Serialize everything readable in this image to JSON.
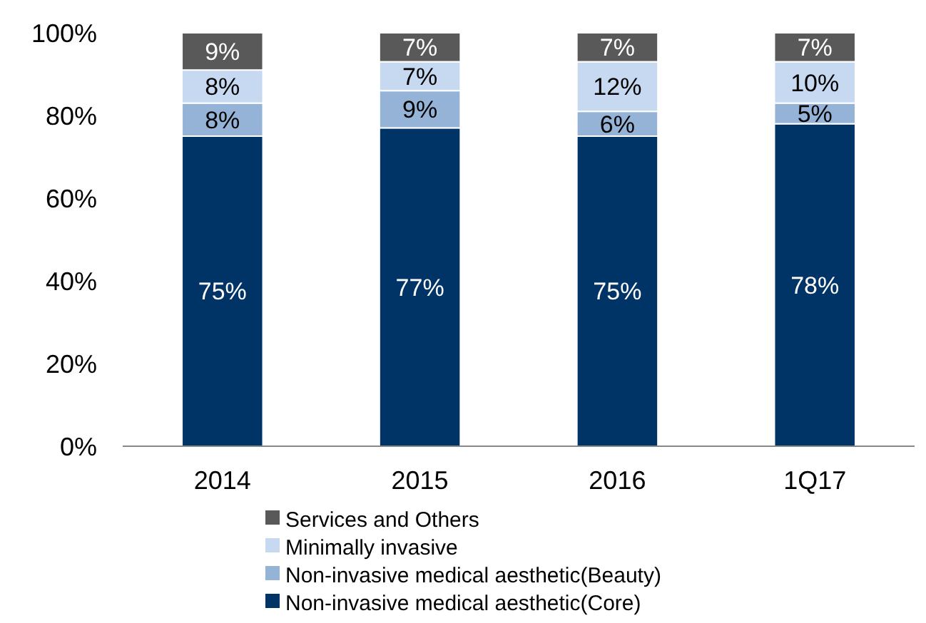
{
  "chart_data": {
    "type": "bar",
    "stacked": true,
    "categories": [
      "2014",
      "2015",
      "2016",
      "1Q17"
    ],
    "series": [
      {
        "name": "Non-invasive medical aesthetic(Core)",
        "color": "#003366",
        "values": [
          75,
          77,
          75,
          78
        ],
        "value_labels": [
          "75%",
          "77%",
          "75%",
          "78%"
        ]
      },
      {
        "name": "Non-invasive medical aesthetic(Beauty)",
        "color": "#95b3d7",
        "values": [
          8,
          9,
          6,
          5
        ],
        "value_labels": [
          "8%",
          "9%",
          "6%",
          "5%"
        ]
      },
      {
        "name": "Minimally invasive",
        "color": "#c6d9f1",
        "values": [
          8,
          7,
          12,
          10
        ],
        "value_labels": [
          "8%",
          "7%",
          "12%",
          "10%"
        ]
      },
      {
        "name": "Services and Others",
        "color": "#595959",
        "values": [
          9,
          7,
          7,
          7
        ],
        "value_labels": [
          "9%",
          "7%",
          "7%",
          "7%"
        ]
      }
    ],
    "ylim": [
      0,
      100
    ],
    "yticks": [
      {
        "value": 0,
        "label": "0%"
      },
      {
        "value": 20,
        "label": "20%"
      },
      {
        "value": 40,
        "label": "40%"
      },
      {
        "value": 60,
        "label": "60%"
      },
      {
        "value": 80,
        "label": "80%"
      },
      {
        "value": 100,
        "label": "100%"
      }
    ],
    "grid": false,
    "legend": "bottom"
  }
}
